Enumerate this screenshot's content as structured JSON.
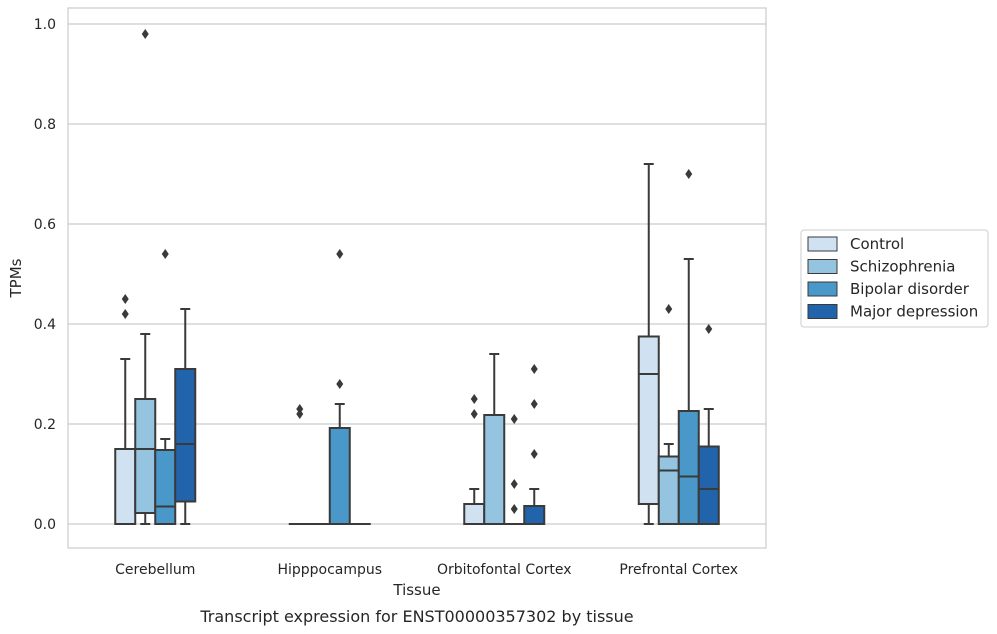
{
  "caption": "Transcript expression for ENST00000357302 by tissue",
  "chart_data": {
    "type": "box",
    "xlabel": "Tissue",
    "ylabel": "TPMs",
    "ylim": [
      -0.045,
      1.03
    ],
    "yticks": [
      0.0,
      0.2,
      0.4,
      0.6,
      0.8,
      1.0
    ],
    "ytick_labels": [
      "0.0",
      "0.2",
      "0.4",
      "0.6",
      "0.8",
      "1.0"
    ],
    "grid": true,
    "legend_position": "right",
    "categories": [
      "Cerebellum",
      "Hipppocampus",
      "Orbitofontal Cortex",
      "Prefrontal Cortex"
    ],
    "series": [
      {
        "name": "Control",
        "color": "#d0e1f2",
        "boxes": [
          {
            "whislo": 0.0,
            "q1": 0.0,
            "med": 0.15,
            "q3": 0.15,
            "whishi": 0.33,
            "fliers": [
              0.42,
              0.45
            ]
          },
          {
            "whislo": 0.0,
            "q1": 0.0,
            "med": 0.0,
            "q3": 0.0,
            "whishi": 0.0,
            "fliers": [
              0.22,
              0.23
            ]
          },
          {
            "whislo": 0.0,
            "q1": 0.0,
            "med": 0.0,
            "q3": 0.04,
            "whishi": 0.07,
            "fliers": [
              0.22,
              0.25
            ]
          },
          {
            "whislo": 0.0,
            "q1": 0.04,
            "med": 0.3,
            "q3": 0.375,
            "whishi": 0.72,
            "fliers": []
          }
        ]
      },
      {
        "name": "Schizophrenia",
        "color": "#94c4df",
        "boxes": [
          {
            "whislo": 0.0,
            "q1": 0.022,
            "med": 0.15,
            "q3": 0.25,
            "whishi": 0.38,
            "fliers": [
              0.98
            ]
          },
          {
            "whislo": 0.0,
            "q1": 0.0,
            "med": 0.0,
            "q3": 0.0,
            "whishi": 0.0,
            "fliers": []
          },
          {
            "whislo": 0.0,
            "q1": 0.0,
            "med": 0.0,
            "q3": 0.218,
            "whishi": 0.34,
            "fliers": []
          },
          {
            "whislo": 0.0,
            "q1": 0.0,
            "med": 0.107,
            "q3": 0.135,
            "whishi": 0.16,
            "fliers": [
              0.43
            ]
          }
        ]
      },
      {
        "name": "Bipolar disorder",
        "color": "#4a98c9",
        "boxes": [
          {
            "whislo": 0.0,
            "q1": 0.0,
            "med": 0.035,
            "q3": 0.148,
            "whishi": 0.17,
            "fliers": [
              0.54
            ]
          },
          {
            "whislo": 0.0,
            "q1": 0.0,
            "med": 0.0,
            "q3": 0.192,
            "whishi": 0.24,
            "fliers": [
              0.28,
              0.54
            ]
          },
          {
            "whislo": 0.0,
            "q1": 0.0,
            "med": 0.0,
            "q3": 0.0,
            "whishi": 0.0,
            "fliers": [
              0.03,
              0.08,
              0.21
            ]
          },
          {
            "whislo": 0.0,
            "q1": 0.0,
            "med": 0.095,
            "q3": 0.226,
            "whishi": 0.53,
            "fliers": [
              0.7
            ]
          }
        ]
      },
      {
        "name": "Major depression",
        "color": "#2164ab",
        "boxes": [
          {
            "whislo": 0.0,
            "q1": 0.045,
            "med": 0.16,
            "q3": 0.31,
            "whishi": 0.43,
            "fliers": []
          },
          {
            "whislo": 0.0,
            "q1": 0.0,
            "med": 0.0,
            "q3": 0.0,
            "whishi": 0.0,
            "fliers": []
          },
          {
            "whislo": 0.0,
            "q1": 0.0,
            "med": 0.0,
            "q3": 0.036,
            "whishi": 0.07,
            "fliers": [
              0.14,
              0.24,
              0.31
            ]
          },
          {
            "whislo": 0.0,
            "q1": 0.0,
            "med": 0.07,
            "q3": 0.155,
            "whishi": 0.23,
            "fliers": [
              0.39
            ]
          }
        ]
      }
    ]
  }
}
